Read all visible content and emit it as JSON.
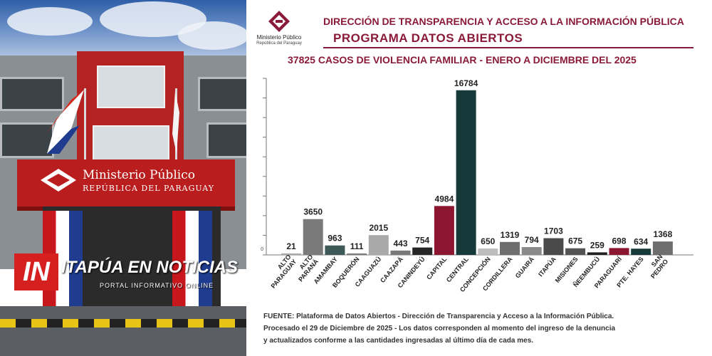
{
  "photo": {
    "brand": {
      "prefix": "IN",
      "main": "ITAPÚA EN NOTICIAS",
      "tagline": "PORTAL INFORMATIVO ONLINE"
    },
    "building_sign": {
      "line1": "Ministerio Público",
      "line2": "REPÚBLICA DEL PARAGUAY"
    }
  },
  "header": {
    "logo_name": "Ministerio Público",
    "logo_subtitle": "República del Paraguay",
    "department": "DIRECCIÓN DE TRANSPARENCIA Y ACCESO A LA INFORMACIÓN PÚBLICA",
    "program": "PROGRAMA  DATOS ABIERTOS",
    "accent_color": "#8a1a3a"
  },
  "chart_data": {
    "type": "bar",
    "title": "37825 CASOS DE VIOLENCIA FAMILIAR - ENERO A DICIEMBRE DEL 2025",
    "xlabel": "",
    "ylabel": "",
    "ylim": [
      0,
      18000
    ],
    "grid": false,
    "categories": [
      "ALTO PARAGUAY",
      "ALTO PARANÁ",
      "AMAMBAY",
      "BOQUERÓN",
      "CAAGUAZÚ",
      "CAAZAPÁ",
      "CANINDEYÚ",
      "CAPITAL",
      "CENTRAL",
      "CONCEPCIÓN",
      "CORDILLERA",
      "GUAIRÁ",
      "ITAPÚA",
      "MISIONES",
      "ÑEEMBUCÚ",
      "PARAGUARÍ",
      "PTE. HAYES",
      "SAN PEDRO"
    ],
    "values": [
      21,
      3650,
      963,
      111,
      2015,
      443,
      754,
      4984,
      16784,
      650,
      1319,
      794,
      1703,
      675,
      259,
      698,
      634,
      1368
    ],
    "colors": [
      "#a9a9a9",
      "#7a7a7a",
      "#3e5a58",
      "#7a7a7a",
      "#a9a9a9",
      "#7a7a7a",
      "#262626",
      "#8c1530",
      "#16393a",
      "#bdbdbd",
      "#6e6e6e",
      "#8a8a8a",
      "#4a4a4a",
      "#545454",
      "#202020",
      "#8c1530",
      "#16393a",
      "#6e6e6e"
    ],
    "axis_zero_label": "0"
  },
  "footer": {
    "source_line1": "FUENTE: Plataforma de Datos Abiertos - Dirección de Transparencia y Acceso a la Información Pública.",
    "source_line2": "Procesado el 29 de Diciembre de 2025 - Los datos corresponden al momento del ingreso de la denuncia",
    "source_line3": "y actualizados conforme a las cantidades ingresadas al último día de cada mes."
  }
}
